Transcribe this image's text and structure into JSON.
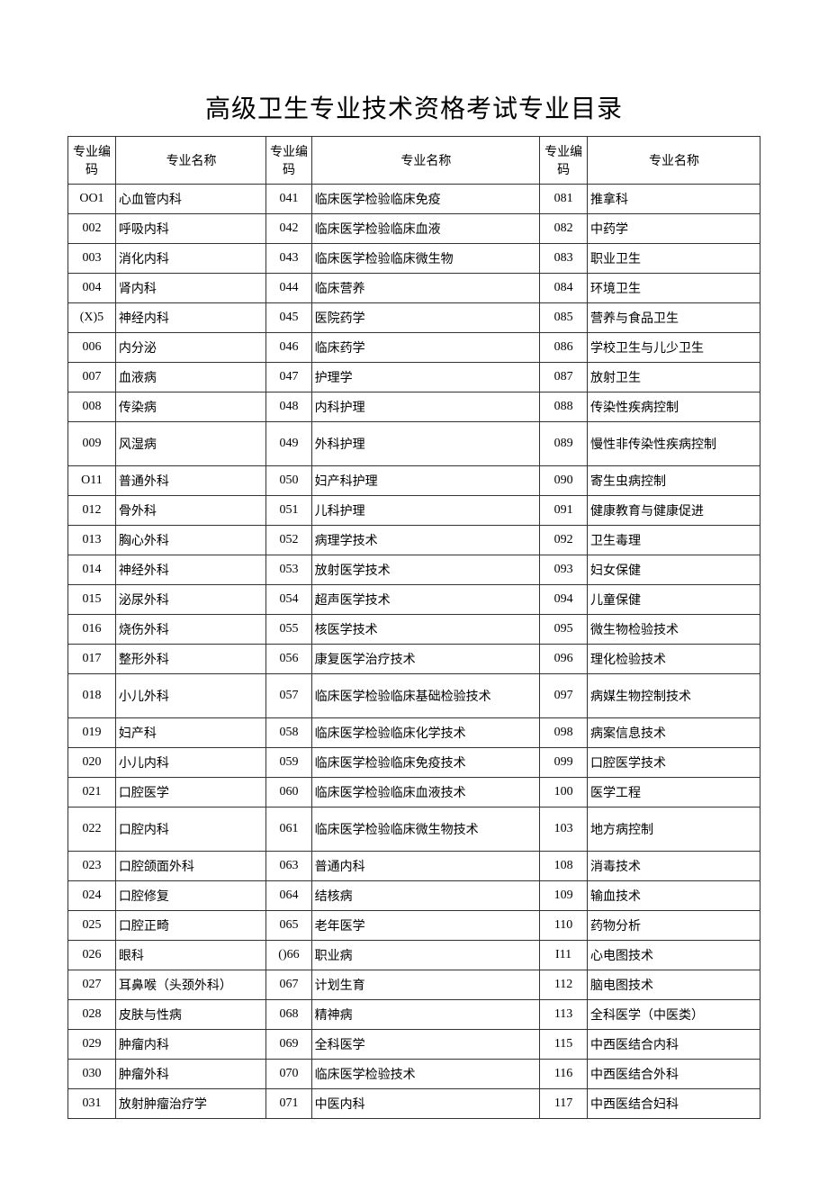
{
  "title": "高级卫生专业技术资格考试专业目录",
  "headers": {
    "code1": "专业编码",
    "name1": "专业名称",
    "code2": "专业编码",
    "name2": "专业名称",
    "code3": "专业编码",
    "name3": "专业名称"
  },
  "rows": [
    {
      "c1": "OO1",
      "n1": "心血管内科",
      "c2": "041",
      "n2": "临床医学检验临床免疫",
      "c3": "081",
      "n3": "推拿科"
    },
    {
      "c1": "002",
      "n1": "呼吸内科",
      "c2": "042",
      "n2": "临床医学检验临床血液",
      "c3": "082",
      "n3": "中药学"
    },
    {
      "c1": "003",
      "n1": "消化内科",
      "c2": "043",
      "n2": "临床医学检验临床微生物",
      "c3": "083",
      "n3": "职业卫生"
    },
    {
      "c1": "004",
      "n1": "肾内科",
      "c2": "044",
      "n2": "临床营养",
      "c3": "084",
      "n3": "环境卫生"
    },
    {
      "c1": "(X)5",
      "n1": "神经内科",
      "c2": "045",
      "n2": "医院药学",
      "c3": "085",
      "n3": "营养与食品卫生"
    },
    {
      "c1": "006",
      "n1": "内分泌",
      "c2": "046",
      "n2": "临床药学",
      "c3": "086",
      "n3": "学校卫生与儿少卫生"
    },
    {
      "c1": "007",
      "n1": "血液病",
      "c2": "047",
      "n2": "护理学",
      "c3": "087",
      "n3": "放射卫生"
    },
    {
      "c1": "008",
      "n1": "传染病",
      "c2": "048",
      "n2": "内科护理",
      "c3": "088",
      "n3": "传染性疾病控制"
    },
    {
      "c1": "009",
      "n1": "风湿病",
      "c2": "049",
      "n2": "外科护理",
      "c3": "089",
      "n3": "慢性非传染性疾病控制",
      "tall": true
    },
    {
      "c1": "O11",
      "n1": "普通外科",
      "c2": "050",
      "n2": "妇产科护理",
      "c3": "090",
      "n3": "寄生虫病控制"
    },
    {
      "c1": "012",
      "n1": "骨外科",
      "c2": "051",
      "n2": "儿科护理",
      "c3": "091",
      "n3": "健康教育与健康促进"
    },
    {
      "c1": "013",
      "n1": "胸心外科",
      "c2": "052",
      "n2": "病理学技术",
      "c3": "092",
      "n3": "卫生毒理"
    },
    {
      "c1": "014",
      "n1": "神经外科",
      "c2": "053",
      "n2": "放射医学技术",
      "c3": "093",
      "n3": "妇女保健"
    },
    {
      "c1": "015",
      "n1": "泌尿外科",
      "c2": "054",
      "n2": "超声医学技术",
      "c3": "094",
      "n3": "儿童保健"
    },
    {
      "c1": "016",
      "n1": "烧伤外科",
      "c2": "055",
      "n2": "核医学技术",
      "c3": "095",
      "n3": "微生物检验技术"
    },
    {
      "c1": "017",
      "n1": "整形外科",
      "c2": "056",
      "n2": "康复医学治疗技术",
      "c3": "096",
      "n3": "理化检验技术"
    },
    {
      "c1": "018",
      "n1": "小儿外科",
      "c2": "057",
      "n2": "临床医学检验临床基础检验技术",
      "c3": "097",
      "n3": "病媒生物控制技术",
      "tall": true
    },
    {
      "c1": "019",
      "n1": "妇产科",
      "c2": "058",
      "n2": "临床医学检验临床化学技术",
      "c3": "098",
      "n3": "病案信息技术"
    },
    {
      "c1": "020",
      "n1": "小儿内科",
      "c2": "059",
      "n2": "临床医学检验临床免疫技术",
      "c3": "099",
      "n3": "口腔医学技术"
    },
    {
      "c1": "021",
      "n1": "口腔医学",
      "c2": "060",
      "n2": "临床医学检验临床血液技术",
      "c3": "100",
      "n3": "医学工程"
    },
    {
      "c1": "022",
      "n1": "口腔内科",
      "c2": "061",
      "n2": "临床医学检验临床微生物技术",
      "c3": "103",
      "n3": "地方病控制",
      "tall": true
    },
    {
      "c1": "023",
      "n1": "口腔颌面外科",
      "c2": "063",
      "n2": "普通内科",
      "c3": "108",
      "n3": "消毒技术"
    },
    {
      "c1": "024",
      "n1": "口腔修复",
      "c2": "064",
      "n2": "结核病",
      "c3": "109",
      "n3": "输血技术"
    },
    {
      "c1": "025",
      "n1": "口腔正畸",
      "c2": "065",
      "n2": "老年医学",
      "c3": "110",
      "n3": "药物分析"
    },
    {
      "c1": "026",
      "n1": "眼科",
      "c2": "()66",
      "n2": "职业病",
      "c3": "I11",
      "n3": "心电图技术"
    },
    {
      "c1": "027",
      "n1": "耳鼻喉（头颈外科）",
      "c2": "067",
      "n2": "计划生育",
      "c3": "112",
      "n3": "脑电图技术"
    },
    {
      "c1": "028",
      "n1": "皮肤与性病",
      "c2": "068",
      "n2": "精神病",
      "c3": "113",
      "n3": "全科医学（中医类）"
    },
    {
      "c1": "029",
      "n1": "肿瘤内科",
      "c2": "069",
      "n2": "全科医学",
      "c3": "115",
      "n3": "中西医结合内科"
    },
    {
      "c1": "030",
      "n1": "肿瘤外科",
      "c2": "070",
      "n2": "临床医学检验技术",
      "c3": "116",
      "n3": "中西医结合外科"
    },
    {
      "c1": "031",
      "n1": "放射肿瘤治疗学",
      "c2": "071",
      "n2": "中医内科",
      "c3": "117",
      "n3": "中西医结合妇科"
    }
  ],
  "styling": {
    "background_color": "#ffffff",
    "border_color": "#333333",
    "text_color": "#000000",
    "title_fontsize": 28,
    "body_fontsize": 14,
    "font_family": "SimSun"
  }
}
